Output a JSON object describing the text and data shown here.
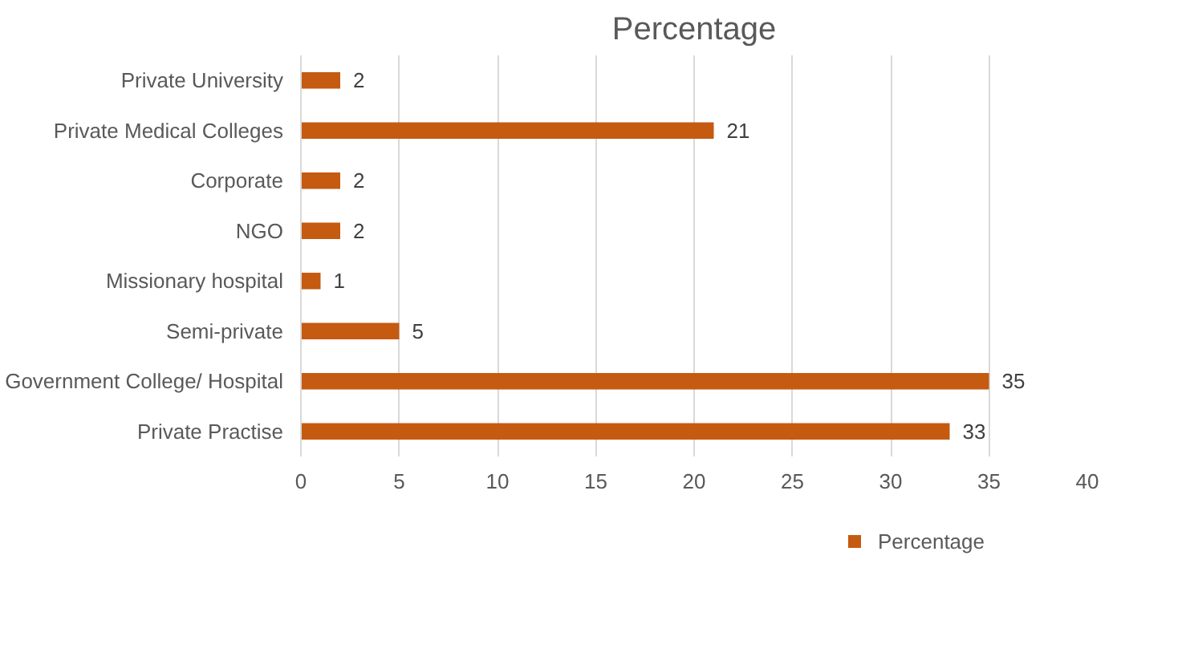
{
  "chart_data": {
    "type": "bar",
    "orientation": "horizontal",
    "title": "Percentage",
    "categories": [
      "Private University",
      "Private Medical Colleges",
      "Corporate",
      "NGO",
      "Missionary hospital",
      "Semi-private",
      "Government College/ Hospital",
      "Private Practise"
    ],
    "series": [
      {
        "name": "Percentage",
        "color": "#c55a11",
        "values": [
          2,
          21,
          2,
          2,
          1,
          5,
          35,
          33
        ]
      }
    ],
    "xlim": [
      0,
      40
    ],
    "xticks": [
      0,
      5,
      10,
      15,
      20,
      25,
      30,
      35,
      40
    ],
    "grid": "x",
    "legend": "bottom",
    "data_labels": true
  }
}
